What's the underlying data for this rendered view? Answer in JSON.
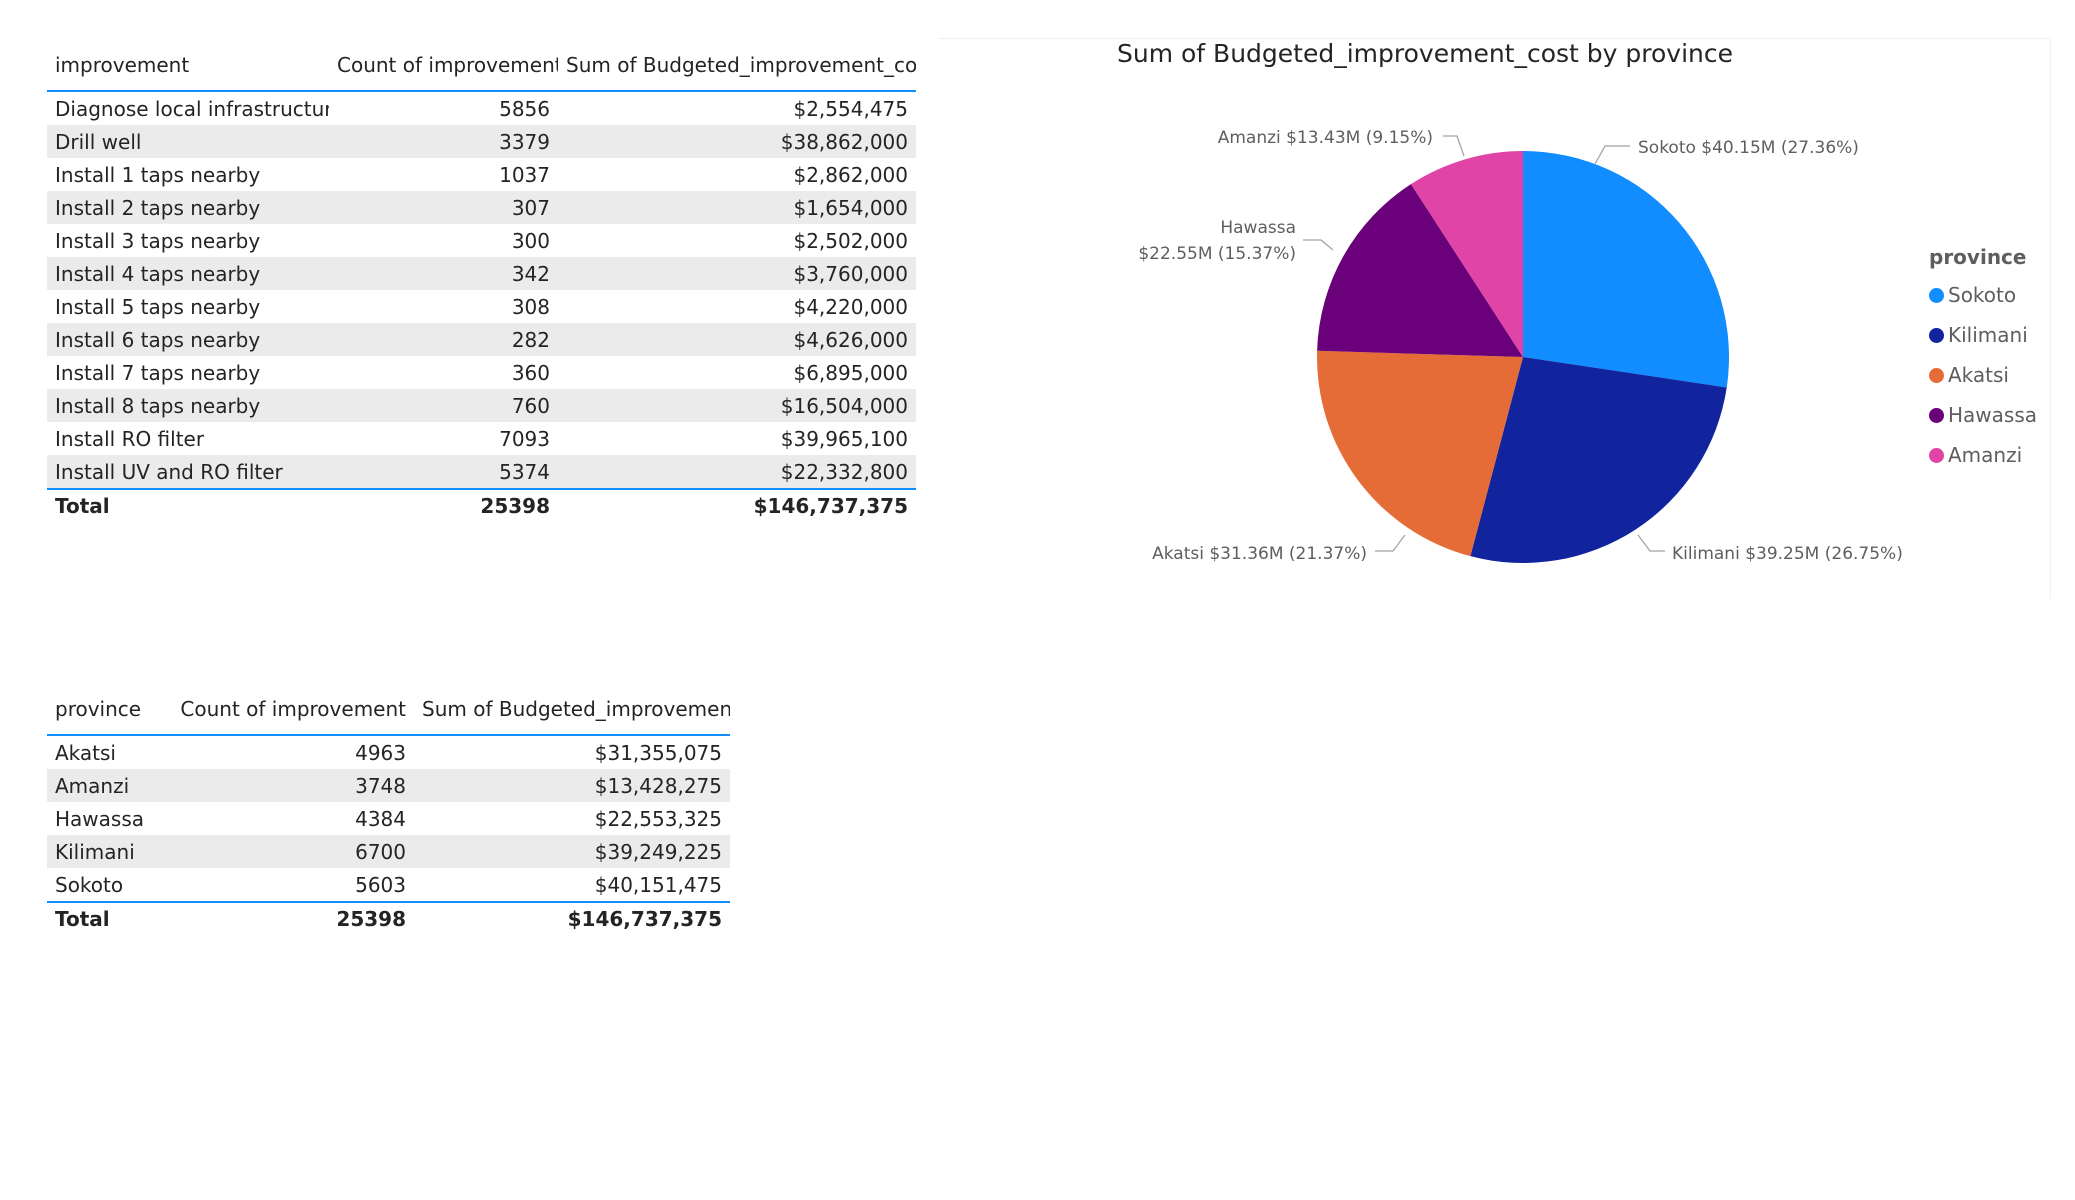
{
  "colors": {
    "accent": "#118dff",
    "band": "#ebebeb",
    "Sokoto": "#118dff",
    "Kilimani": "#12239e",
    "Akatsi": "#e66c37",
    "Hawassa": "#6b007b",
    "Amanzi": "#e044a7"
  },
  "improvement_table": {
    "headers": [
      "improvement",
      "Count of improvement",
      "Sum of Budgeted_improvement_cost"
    ],
    "rows": [
      [
        "Diagnose local infrastructure",
        "5856",
        "$2,554,475"
      ],
      [
        "Drill well",
        "3379",
        "$38,862,000"
      ],
      [
        "Install 1 taps nearby",
        "1037",
        "$2,862,000"
      ],
      [
        "Install 2 taps nearby",
        "307",
        "$1,654,000"
      ],
      [
        "Install 3 taps nearby",
        "300",
        "$2,502,000"
      ],
      [
        "Install 4 taps nearby",
        "342",
        "$3,760,000"
      ],
      [
        "Install 5 taps nearby",
        "308",
        "$4,220,000"
      ],
      [
        "Install 6 taps nearby",
        "282",
        "$4,626,000"
      ],
      [
        "Install 7 taps nearby",
        "360",
        "$6,895,000"
      ],
      [
        "Install 8 taps nearby",
        "760",
        "$16,504,000"
      ],
      [
        "Install RO filter",
        "7093",
        "$39,965,100"
      ],
      [
        "Install UV and RO filter",
        "5374",
        "$22,332,800"
      ]
    ],
    "total": [
      "Total",
      "25398",
      "$146,737,375"
    ]
  },
  "province_table": {
    "headers": [
      "province",
      "Count of improvement",
      "Sum of Budgeted_improvement_cost"
    ],
    "rows": [
      [
        "Akatsi",
        "4963",
        "$31,355,075"
      ],
      [
        "Amanzi",
        "3748",
        "$13,428,275"
      ],
      [
        "Hawassa",
        "4384",
        "$22,553,325"
      ],
      [
        "Kilimani",
        "6700",
        "$39,249,225"
      ],
      [
        "Sokoto",
        "5603",
        "$40,151,475"
      ]
    ],
    "total": [
      "Total",
      "25398",
      "$146,737,375"
    ]
  },
  "chart_data": {
    "type": "pie",
    "title": "Sum of Budgeted_improvement_cost by province",
    "legend_title": "province",
    "legend_position": "right",
    "slices": [
      {
        "name": "Sokoto",
        "value": 40151475,
        "label": "Sokoto $40.15M (27.36%)"
      },
      {
        "name": "Kilimani",
        "value": 39249225,
        "label": "Kilimani $39.25M (26.75%)"
      },
      {
        "name": "Akatsi",
        "value": 31355075,
        "label": "Akatsi $31.36M (21.37%)"
      },
      {
        "name": "Hawassa",
        "value": 22553325,
        "label_lines": [
          "Hawassa",
          "$22.55M (15.37%)"
        ]
      },
      {
        "name": "Amanzi",
        "value": 13428275,
        "label": "Amanzi $13.43M (9.15%)"
      }
    ]
  }
}
